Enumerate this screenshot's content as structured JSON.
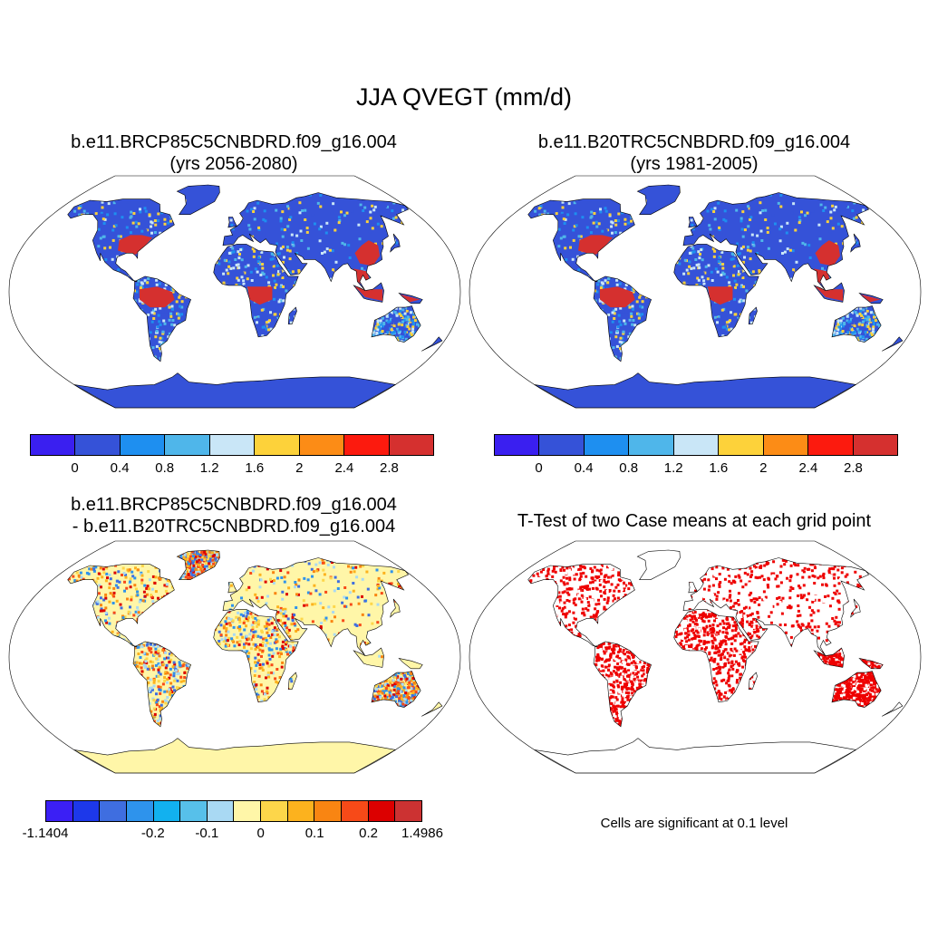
{
  "figure": {
    "title": "JJA QVEGT (mm/d)"
  },
  "panels": [
    {
      "id": "p1",
      "title_line1": "b.e11.BRCP85C5CNBDRD.f09_g16.004",
      "title_line2": "(yrs 2056-2080)"
    },
    {
      "id": "p2",
      "title_line1": "b.e11.B20TRC5CNBDRD.f09_g16.004",
      "title_line2": "(yrs 1981-2005)"
    },
    {
      "id": "p3",
      "title_line1": "b.e11.BRCP85C5CNBDRD.f09_g16.004",
      "title_line2": "- b.e11.B20TRC5CNBDRD.f09_g16.004"
    },
    {
      "id": "p4",
      "title_line1": "T-Test of two Case means at each grid point",
      "title_line2": ""
    }
  ],
  "colorbars": {
    "abs": {
      "colors": [
        "#3a1ff0",
        "#3552d8",
        "#1e8ff0",
        "#4fb6ea",
        "#c9e6f7",
        "#fdd23a",
        "#fc8c16",
        "#fc1a0e",
        "#d5302f"
      ],
      "labels": [
        "0",
        "0.4",
        "0.8",
        "1.2",
        "1.6",
        "2",
        "2.4",
        "2.8"
      ]
    },
    "diff": {
      "colors": [
        "#3b1ff5",
        "#1d38ea",
        "#3f6ee0",
        "#2e93ec",
        "#12b1ef",
        "#57c0ea",
        "#a9d9f3",
        "#fff6a8",
        "#fdd64a",
        "#fcb21e",
        "#f98512",
        "#f74a18",
        "#dc0000",
        "#cc3232"
      ],
      "labels": [
        "-1.1404",
        "-0.2",
        "-0.1",
        "0",
        "0.1",
        "0.2",
        "1.4986"
      ],
      "label_positions": [
        0,
        4,
        6,
        8,
        10,
        12,
        14
      ]
    }
  },
  "significance_note": "Cells are significant at 0.1 level",
  "map_colors": {
    "ocean": "#ffffff",
    "land_abs_base": "#3552d8",
    "land_diff_base": "#fff6a8",
    "significant": "#ee0000",
    "coastline": "#000000"
  }
}
